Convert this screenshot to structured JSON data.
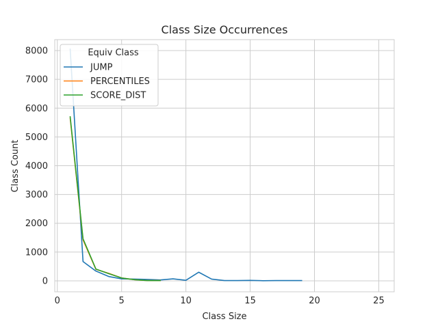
{
  "chart_data": {
    "type": "line",
    "title": "Class Size Occurrences",
    "xlabel": "Class Size",
    "ylabel": "Class Count",
    "xlim": [
      -0.2,
      26.2
    ],
    "ylim": [
      -380,
      8380
    ],
    "x_ticks": [
      0,
      5,
      10,
      15,
      20,
      25
    ],
    "y_ticks": [
      0,
      1000,
      2000,
      3000,
      4000,
      5000,
      6000,
      7000,
      8000
    ],
    "grid": true,
    "legend": {
      "title": "Equiv Class",
      "placement": "top-left"
    },
    "series": [
      {
        "name": "JUMP",
        "color": "#1f77b4",
        "x": [
          1,
          2,
          3,
          4,
          5,
          6,
          7,
          8,
          9,
          10,
          11,
          12,
          13,
          14,
          15,
          16,
          17,
          18,
          19
        ],
        "y": [
          8050,
          670,
          340,
          150,
          70,
          60,
          50,
          30,
          70,
          20,
          300,
          60,
          10,
          10,
          15,
          5,
          10,
          10,
          10
        ]
      },
      {
        "name": "PERCENTILES",
        "color": "#ff7f0e",
        "x": [
          1,
          2,
          3,
          4,
          5,
          6,
          7,
          8
        ],
        "y": [
          5650,
          1420,
          400,
          260,
          100,
          40,
          10,
          10
        ]
      },
      {
        "name": "SCORE_DIST",
        "color": "#2ca02c",
        "x": [
          1,
          2,
          3,
          4,
          5,
          6,
          7,
          8
        ],
        "y": [
          5700,
          1460,
          410,
          250,
          100,
          40,
          10,
          10
        ]
      }
    ]
  }
}
